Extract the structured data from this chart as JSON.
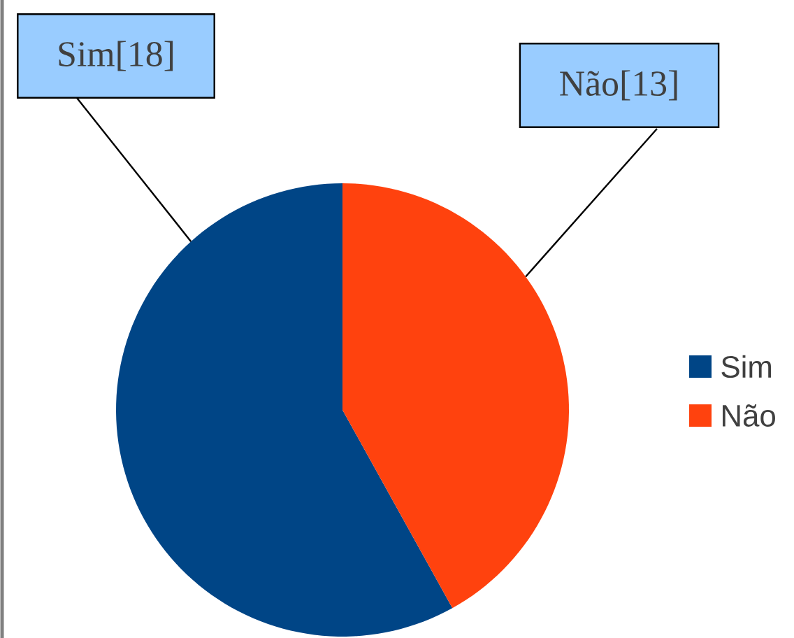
{
  "chart_data": {
    "type": "pie",
    "categories": [
      "Sim",
      "Não"
    ],
    "values": [
      18,
      13
    ],
    "colors": [
      "#004586",
      "#ff420e"
    ],
    "value_labels": [
      "Sim[18]",
      "Não[13]"
    ],
    "legend": "right"
  }
}
